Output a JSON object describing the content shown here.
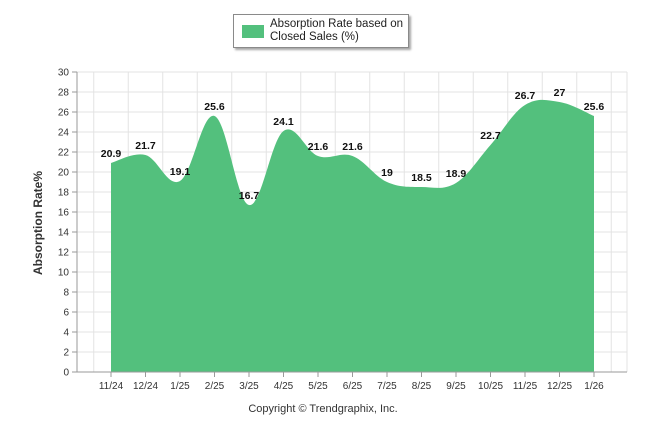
{
  "chart_data": {
    "type": "area",
    "title": "",
    "xlabel": "",
    "ylabel": "Absorption Rate%",
    "ylim": [
      0,
      30
    ],
    "yticks": [
      0,
      2,
      4,
      6,
      8,
      10,
      12,
      14,
      16,
      18,
      20,
      22,
      24,
      26,
      28,
      30
    ],
    "grid": true,
    "legend_position": "top-center",
    "categories": [
      "11/24",
      "12/24",
      "1/25",
      "2/25",
      "3/25",
      "4/25",
      "5/25",
      "6/25",
      "7/25",
      "8/25",
      "9/25",
      "10/25",
      "11/25",
      "12/25",
      "1/26"
    ],
    "series": [
      {
        "name": "Absorption Rate based on Closed Sales (%)",
        "color": "#53c07d",
        "values": [
          20.9,
          21.7,
          19.1,
          25.6,
          16.7,
          24.1,
          21.6,
          21.6,
          19,
          18.5,
          18.9,
          22.7,
          26.7,
          27,
          25.6
        ]
      }
    ]
  },
  "legend": {
    "label": "Absorption Rate based on Closed Sales (%)"
  },
  "footer": {
    "copyright": "Copyright © Trendgraphix, Inc."
  }
}
